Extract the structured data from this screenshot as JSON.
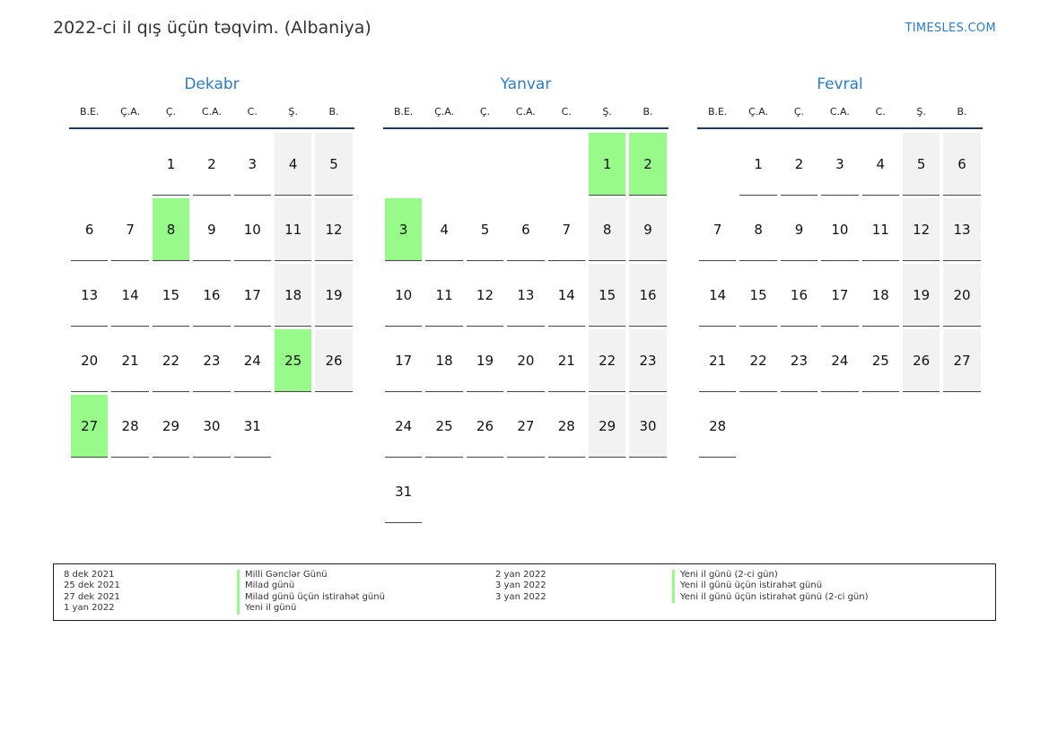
{
  "header": {
    "title": "2022-ci il qış üçün təqvim. (Albaniya)",
    "site": "TIMESLES.COM"
  },
  "colors": {
    "accent": "#2e7bbf",
    "holiday": "#97fb89",
    "weekend": "#f2f2f2"
  },
  "weekdays": [
    "B.E.",
    "Ç.A.",
    "Ç.",
    "C.A.",
    "C.",
    "Ş.",
    "B."
  ],
  "months": [
    {
      "name": "Dekabr",
      "weeks": [
        [
          null,
          null,
          1,
          2,
          3,
          4,
          5
        ],
        [
          6,
          7,
          8,
          9,
          10,
          11,
          12
        ],
        [
          13,
          14,
          15,
          16,
          17,
          18,
          19
        ],
        [
          20,
          21,
          22,
          23,
          24,
          25,
          26
        ],
        [
          27,
          28,
          29,
          30,
          31,
          null,
          null
        ]
      ],
      "holidays": [
        8,
        25,
        27
      ]
    },
    {
      "name": "Yanvar",
      "weeks": [
        [
          null,
          null,
          null,
          null,
          null,
          1,
          2
        ],
        [
          3,
          4,
          5,
          6,
          7,
          8,
          9
        ],
        [
          10,
          11,
          12,
          13,
          14,
          15,
          16
        ],
        [
          17,
          18,
          19,
          20,
          21,
          22,
          23
        ],
        [
          24,
          25,
          26,
          27,
          28,
          29,
          30
        ],
        [
          31,
          null,
          null,
          null,
          null,
          null,
          null
        ]
      ],
      "holidays": [
        1,
        2,
        3
      ]
    },
    {
      "name": "Fevral",
      "weeks": [
        [
          null,
          1,
          2,
          3,
          4,
          5,
          6
        ],
        [
          7,
          8,
          9,
          10,
          11,
          12,
          13
        ],
        [
          14,
          15,
          16,
          17,
          18,
          19,
          20
        ],
        [
          21,
          22,
          23,
          24,
          25,
          26,
          27
        ],
        [
          28,
          null,
          null,
          null,
          null,
          null,
          null
        ]
      ],
      "holidays": []
    }
  ],
  "legend": {
    "left": [
      {
        "date": "8 dek 2021",
        "name": "Milli Gənclər Günü"
      },
      {
        "date": "25 dek 2021",
        "name": "Milad günü"
      },
      {
        "date": "27 dek 2021",
        "name": "Milad günü üçün istirahət günü"
      },
      {
        "date": "1 yan 2022",
        "name": "Yeni il günü"
      }
    ],
    "right": [
      {
        "date": "2 yan 2022",
        "name": "Yeni il günü (2-ci gün)"
      },
      {
        "date": "3 yan 2022",
        "name": "Yeni il günü üçün istirahət günü"
      },
      {
        "date": "3 yan 2022",
        "name": "Yeni il günü üçün istirahət günü (2-ci gün)"
      }
    ]
  }
}
